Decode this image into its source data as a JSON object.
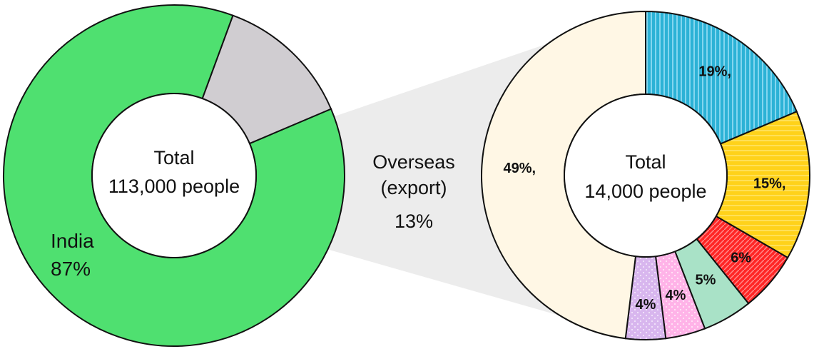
{
  "chart_data": [
    {
      "type": "pie",
      "center_label": [
        "Total",
        "113,000 people"
      ],
      "slices": [
        {
          "label": "India",
          "value": 87,
          "value_label": "87%",
          "color": "#4fe070"
        },
        {
          "label": "Overseas (export)",
          "value": 13,
          "value_label": "13%",
          "color": "#d0cdd1"
        }
      ]
    },
    {
      "type": "pie",
      "center_label": [
        "Total",
        "14,000 people"
      ],
      "slices": [
        {
          "value": 19,
          "value_label": "19%,",
          "color": "#2cb2d6"
        },
        {
          "value": 15,
          "value_label": "15%,",
          "color": "#ffd21a"
        },
        {
          "value": 6,
          "value_label": "6%",
          "color": "#ff2626"
        },
        {
          "value": 5,
          "value_label": "5%",
          "color": "#a9e2c7"
        },
        {
          "value": 4,
          "value_label": "4%",
          "color": "#ffb3e8"
        },
        {
          "value": 4,
          "value_label": "4%",
          "color": "#d8b6ee"
        },
        {
          "value": 49,
          "value_label": "49%,",
          "color": "#fff7e5"
        }
      ]
    }
  ],
  "overseas_label": [
    "Overseas",
    "(export)",
    "13%"
  ]
}
